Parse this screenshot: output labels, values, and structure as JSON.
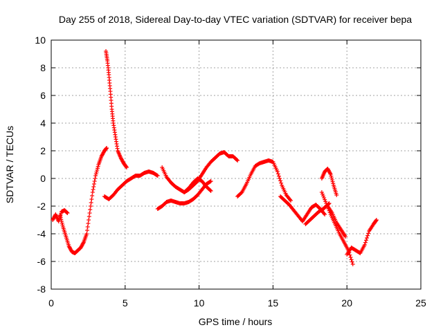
{
  "chart_data": {
    "type": "scatter",
    "title": "Day 255 of 2018, Sidereal Day-to-day VTEC variation (SDTVAR) for receiver bepa",
    "xlabel": "GPS time / hours",
    "ylabel": "SDTVAR / TECUs",
    "xlim": [
      0,
      25
    ],
    "ylim": [
      -8,
      10
    ],
    "xticks": [
      "0",
      "5",
      "10",
      "15",
      "20",
      "25"
    ],
    "yticks": [
      "-8",
      "-6",
      "-4",
      "-2",
      "0",
      "2",
      "4",
      "6",
      "8",
      "10"
    ],
    "grid": true,
    "marker": "+",
    "color": "#ff0000",
    "series": [
      {
        "x": [
          0.1,
          0.3,
          0.5,
          0.7,
          0.9,
          1.1
        ],
        "y": [
          -3.0,
          -2.6,
          -3.1,
          -2.4,
          -2.3,
          -2.5
        ]
      },
      {
        "x": [
          0.6,
          0.8,
          1.0,
          1.2,
          1.4,
          1.6,
          1.8,
          2.0,
          2.2,
          2.4,
          2.6,
          2.8,
          3.0,
          3.2,
          3.4,
          3.6,
          3.75
        ],
        "y": [
          -2.7,
          -3.5,
          -4.2,
          -4.9,
          -5.3,
          -5.4,
          -5.2,
          -5.0,
          -4.6,
          -4.0,
          -2.5,
          -1.0,
          0.2,
          1.0,
          1.6,
          2.0,
          2.2
        ]
      },
      {
        "x": [
          3.7,
          3.8,
          3.9,
          4.0,
          4.1,
          4.2,
          4.35,
          4.5,
          4.7,
          4.9,
          5.1
        ],
        "y": [
          9.2,
          8.5,
          7.5,
          6.3,
          5.0,
          4.0,
          3.0,
          2.0,
          1.5,
          1.1,
          0.8
        ]
      },
      {
        "x": [
          3.6,
          3.9,
          4.2,
          4.5,
          4.8,
          5.1,
          5.4,
          5.7,
          6.0,
          6.3,
          6.6,
          6.9,
          7.2
        ],
        "y": [
          -1.3,
          -1.5,
          -1.2,
          -0.8,
          -0.5,
          -0.2,
          0.0,
          0.2,
          0.2,
          0.4,
          0.5,
          0.4,
          0.2
        ]
      },
      {
        "x": [
          7.5,
          7.8,
          8.1,
          8.4,
          8.7,
          9.0,
          9.3,
          9.6,
          9.9,
          10.2,
          10.5,
          10.8,
          11.1,
          11.4,
          11.7,
          12.0,
          12.3,
          12.6
        ],
        "y": [
          0.8,
          0.1,
          -0.3,
          -0.6,
          -0.8,
          -1.0,
          -0.8,
          -0.5,
          -0.2,
          0.3,
          0.8,
          1.2,
          1.5,
          1.8,
          1.9,
          1.6,
          1.6,
          1.3
        ]
      },
      {
        "x": [
          7.2,
          7.5,
          7.8,
          8.1,
          8.4,
          8.7,
          9.0,
          9.3,
          9.6,
          9.9,
          10.2,
          10.5,
          10.8
        ],
        "y": [
          -2.2,
          -2.0,
          -1.7,
          -1.6,
          -1.7,
          -1.8,
          -1.8,
          -1.7,
          -1.5,
          -1.2,
          -0.8,
          -0.4,
          -0.2
        ]
      },
      {
        "x": [
          9.0,
          9.3,
          9.6,
          9.9,
          10.2,
          10.5,
          10.8
        ],
        "y": [
          -1.0,
          -0.7,
          -0.3,
          0.0,
          -0.2,
          -0.6,
          -0.9
        ]
      },
      {
        "x": [
          12.6,
          12.9,
          13.2,
          13.5,
          13.8,
          14.1,
          14.4,
          14.7,
          15.0,
          15.3,
          15.6,
          15.9,
          16.2
        ],
        "y": [
          -1.3,
          -1.0,
          -0.4,
          0.3,
          0.9,
          1.1,
          1.2,
          1.3,
          1.2,
          0.5,
          -0.5,
          -1.2,
          -1.6
        ]
      },
      {
        "x": [
          15.5,
          15.8,
          16.1,
          16.4,
          16.7,
          17.0,
          17.3,
          17.6,
          17.9,
          18.2,
          18.5
        ],
        "y": [
          -1.3,
          -1.6,
          -1.9,
          -2.3,
          -2.7,
          -3.1,
          -2.6,
          -2.1,
          -1.9,
          -2.2,
          -2.6
        ]
      },
      {
        "x": [
          17.2,
          17.5,
          17.8,
          18.1,
          18.4,
          18.6,
          18.8
        ],
        "y": [
          -3.3,
          -3.0,
          -2.7,
          -2.4,
          -2.2,
          -2.0,
          -1.8
        ]
      },
      {
        "x": [
          18.3,
          18.5,
          18.7,
          18.9,
          19.1,
          19.3
        ],
        "y": [
          0.0,
          0.5,
          0.7,
          0.3,
          -0.5,
          -1.2
        ]
      },
      {
        "x": [
          18.3,
          18.6,
          18.9,
          19.2,
          19.5,
          19.8,
          20.1,
          20.4
        ],
        "y": [
          -1.0,
          -1.8,
          -2.6,
          -3.3,
          -4.0,
          -4.6,
          -5.2,
          -6.2
        ]
      },
      {
        "x": [
          18.7,
          19.0,
          19.3,
          19.6,
          19.9
        ],
        "y": [
          -2.0,
          -2.5,
          -3.2,
          -3.7,
          -4.2
        ]
      },
      {
        "x": [
          20.0,
          20.3,
          20.6,
          20.9,
          21.2,
          21.5,
          21.8,
          22.0
        ],
        "y": [
          -5.5,
          -5.0,
          -5.2,
          -5.4,
          -4.8,
          -3.8,
          -3.3,
          -3.0
        ]
      }
    ]
  }
}
